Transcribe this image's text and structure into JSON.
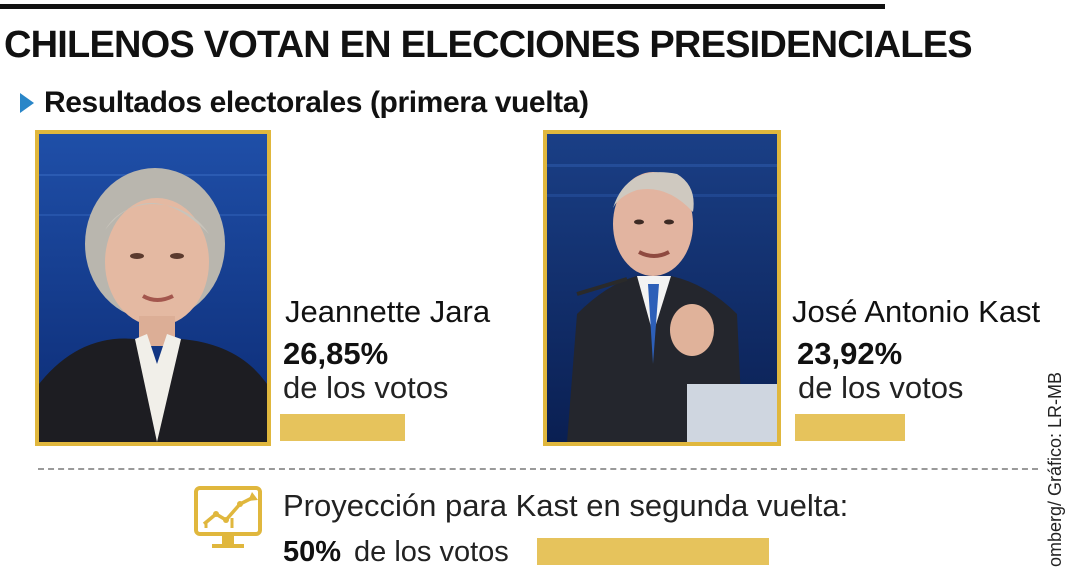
{
  "header": {
    "title": "CHILENOS VOTAN EN ELECCIONES PRESIDENCIALES",
    "subtitle": "Resultados electorales (primera vuelta)"
  },
  "candidates": [
    {
      "name": "Jeannette Jara",
      "percent": "26,85%",
      "votes_label": "de los votos",
      "share": 0.2685
    },
    {
      "name": "José Antonio Kast",
      "percent": "23,92%",
      "votes_label": "de los votos",
      "share": 0.2392
    }
  ],
  "projection": {
    "label": "Proyección para Kast en segunda vuelta:",
    "percent": "50%",
    "votes_label": "de los votos",
    "share": 0.5
  },
  "credit": "omberg/ Gráfico: LR-MB",
  "icons": {
    "bullet": "triangle-right-icon",
    "projection": "growth-chart-monitor-icon"
  },
  "colors": {
    "accent_gold": "#e6c35c",
    "frame_gold": "#e0b73d",
    "bullet_blue": "#2a86c8"
  }
}
